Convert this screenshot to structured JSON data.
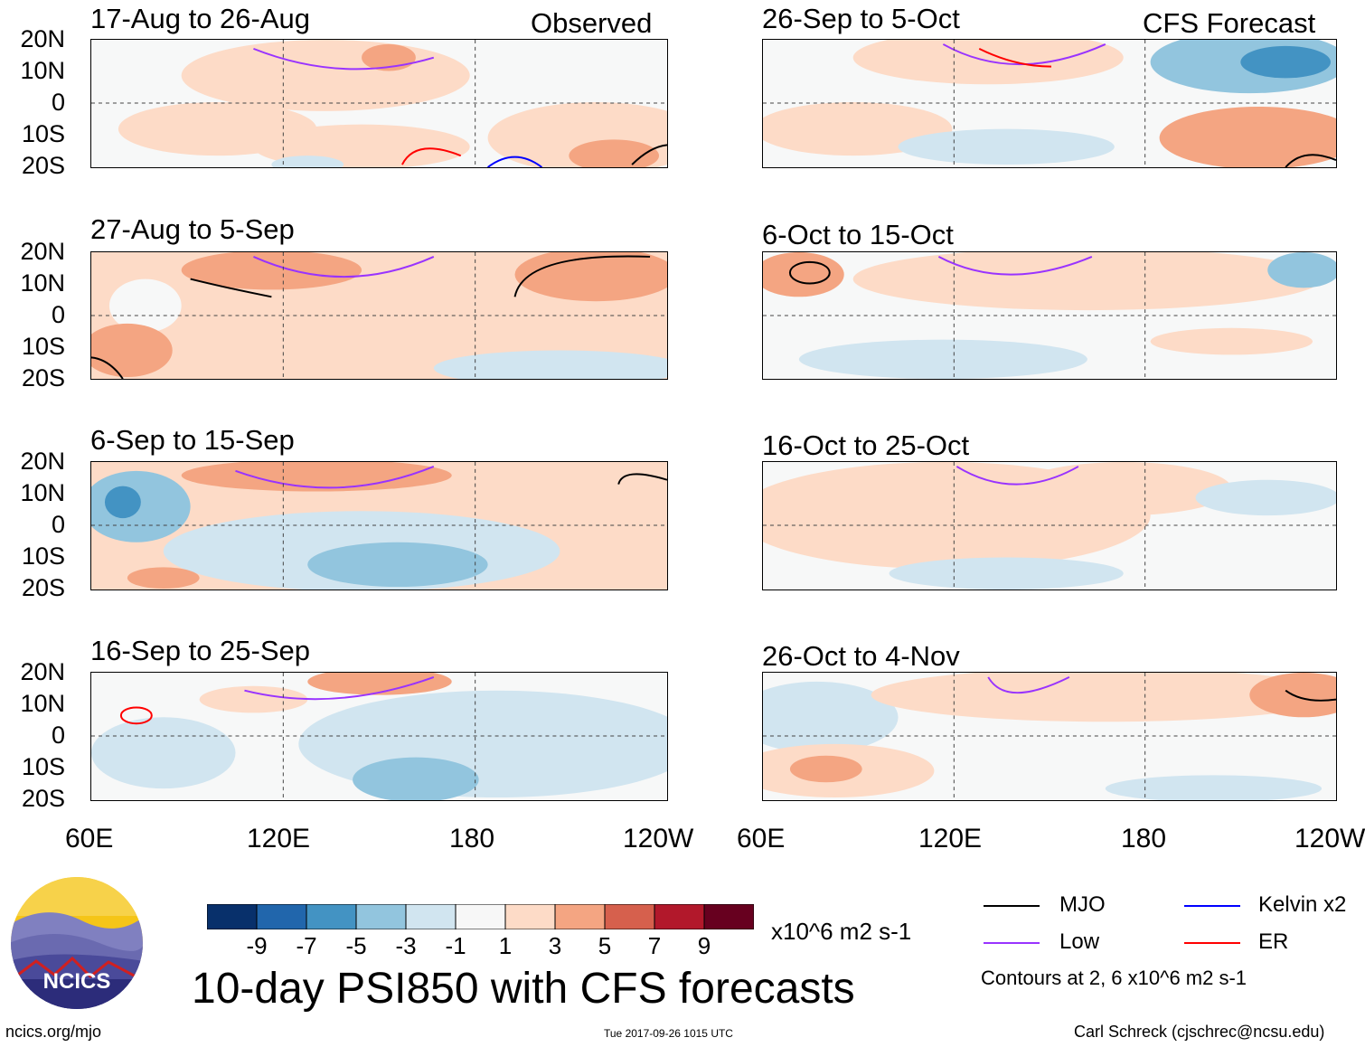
{
  "chart_data": {
    "type": "heatmap",
    "title": "10-day PSI850 with CFS forecasts",
    "units": "x10^6 m2 s-1",
    "headers": {
      "observed": "Observed",
      "forecast": "CFS Forecast"
    },
    "y_ticks": [
      "20N",
      "10N",
      "0",
      "10S",
      "20S"
    ],
    "x_ticks": [
      "60E",
      "120E",
      "180",
      "120W"
    ],
    "lat_range": [
      -20,
      20
    ],
    "lon_range": [
      60,
      240
    ],
    "panels": [
      {
        "period": "17-Aug to 26-Aug",
        "group": "Observed"
      },
      {
        "period": "27-Aug to 5-Sep",
        "group": "Observed"
      },
      {
        "period": "6-Sep to 15-Sep",
        "group": "Observed"
      },
      {
        "period": "16-Sep to 25-Sep",
        "group": "Observed"
      },
      {
        "period": "26-Sep to 5-Oct",
        "group": "CFS Forecast"
      },
      {
        "period": "6-Oct to 15-Oct",
        "group": "CFS Forecast"
      },
      {
        "period": "16-Oct to 25-Oct",
        "group": "CFS Forecast"
      },
      {
        "period": "26-Oct to 4-Nov",
        "group": "CFS Forecast"
      }
    ],
    "colorbar": {
      "labels": [
        "-9",
        "-7",
        "-5",
        "-3",
        "-1",
        "1",
        "3",
        "5",
        "7",
        "9"
      ],
      "colors": [
        "#08306b",
        "#2166ac",
        "#4393c3",
        "#92c5de",
        "#d1e5f0",
        "#f7f7f7",
        "#fddbc7",
        "#f4a582",
        "#d6604d",
        "#b2182b",
        "#67001f"
      ]
    },
    "legend": [
      {
        "label": "MJO",
        "color": "#000000"
      },
      {
        "label": "Kelvin x2",
        "color": "#0000ff"
      },
      {
        "label": "Low",
        "color": "#9933ff"
      },
      {
        "label": "ER",
        "color": "#ff0000"
      }
    ],
    "contour_note": "Contours at 2, 6 x10^6 m2 s-1"
  },
  "footer": {
    "logo_text": "NCICS",
    "site": "ncics.org/mjo",
    "timestamp": "Tue 2017-09-26 1015 UTC",
    "author": "Carl Schreck (cjschrec@ncsu.edu)"
  }
}
